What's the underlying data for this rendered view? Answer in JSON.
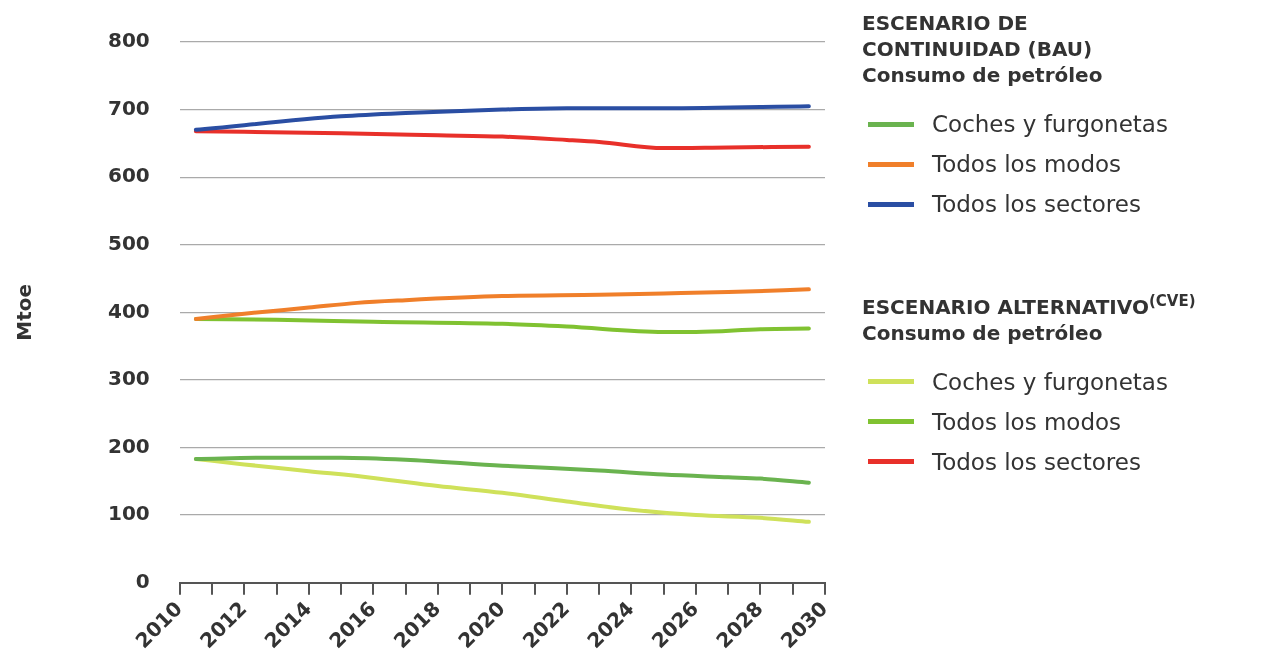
{
  "chart_data": {
    "type": "line",
    "ylabel": "Mtoe",
    "xlim": [
      2010,
      2030
    ],
    "xticks": [
      2010,
      {
        "value": 2011,
        "label": null
      },
      2012,
      {
        "value": 2013,
        "label": null
      },
      2014,
      {
        "value": 2015,
        "label": null
      },
      2016,
      {
        "value": 2017,
        "label": null
      },
      2018,
      {
        "value": 2019,
        "label": null
      },
      2020,
      {
        "value": 2021,
        "label": null
      },
      2022,
      {
        "value": 2023,
        "label": null
      },
      2024,
      {
        "value": 2025,
        "label": null
      },
      2026,
      {
        "value": 2027,
        "label": null
      },
      2028,
      {
        "value": 2029,
        "label": null
      },
      2030
    ],
    "ylim": [
      0,
      800
    ],
    "yticks": [
      0,
      100,
      200,
      300,
      400,
      500,
      600,
      700,
      800
    ],
    "grid": "y",
    "legend": "right",
    "annotations": [
      "ESCENARIO DE\nCONTINUIDAD (BAU)\nConsumo de petróleo",
      "ESCENARIO ALTERNATIVO$^{(CVE)}$\nConsumo de petróleo"
    ],
    "series": [
      {
        "name": "Coches y furgonetas",
        "color": "#6ab34f",
        "x": [
          2010.5,
          2013,
          2015,
          2017,
          2020,
          2023,
          2025,
          2027,
          2028,
          2029.5
        ],
        "values": [
          183,
          185,
          185,
          182,
          173,
          166,
          160,
          156,
          154,
          148
        ]
      },
      {
        "name": "Todos los modos",
        "color": "#f07f2a",
        "x": [
          2010.5,
          2012,
          2014,
          2015.5,
          2017,
          2020,
          2023,
          2025,
          2027,
          2029.5
        ],
        "values": [
          390,
          398,
          407,
          414,
          418,
          424,
          426,
          428,
          430,
          434
        ]
      },
      {
        "name": "Todos los sectores",
        "color": "#2a4ea3",
        "x": [
          2010.5,
          2015,
          2017,
          2020,
          2022,
          2025,
          2029.5
        ],
        "values": [
          670,
          690,
          695,
          700,
          702,
          702,
          705
        ]
      },
      {
        "name": "Coches y furgonetas",
        "color": "#cfe15a",
        "x": [
          2010.5,
          2012,
          2014,
          2016,
          2018,
          2020,
          2022,
          2024,
          2026,
          2028,
          2029.5
        ],
        "values": [
          183,
          175,
          165,
          155,
          143,
          133,
          120,
          108,
          100,
          96,
          90
        ]
      },
      {
        "name": "Todos los modos",
        "color": "#80c231",
        "x": [
          2010.5,
          2013,
          2016,
          2020,
          2022,
          2025,
          2026,
          2028,
          2029.5
        ],
        "values": [
          390,
          389,
          386,
          383,
          379,
          371,
          371,
          375,
          376
        ]
      },
      {
        "name": "Todos los sectores",
        "color": "#e8302a",
        "x": [
          2010.5,
          2015,
          2018,
          2020,
          2022,
          2023,
          2025,
          2027,
          2029.5
        ],
        "values": [
          668,
          665,
          662,
          660,
          655,
          652,
          643,
          644,
          645
        ]
      }
    ]
  }
}
